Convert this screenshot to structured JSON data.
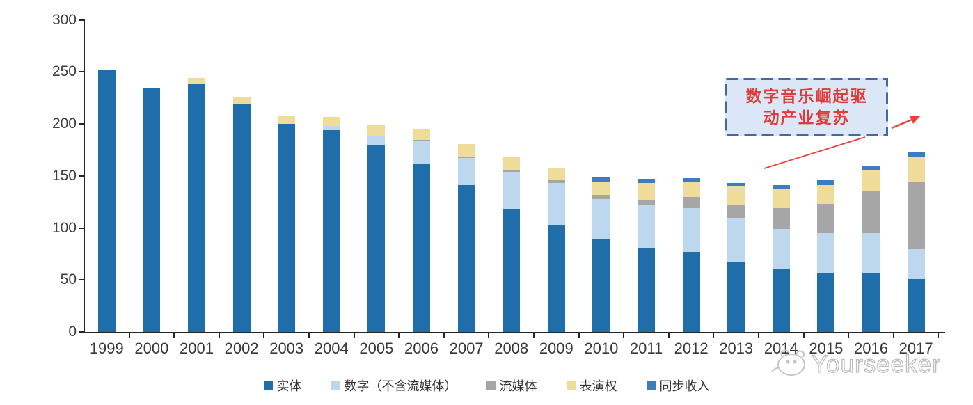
{
  "chart_data": {
    "type": "bar",
    "stacked": true,
    "title": "",
    "xlabel": "",
    "ylabel": "",
    "categories": [
      "1999",
      "2000",
      "2001",
      "2002",
      "2003",
      "2004",
      "2005",
      "2006",
      "2007",
      "2008",
      "2009",
      "2010",
      "2011",
      "2012",
      "2013",
      "2014",
      "2015",
      "2016",
      "2017"
    ],
    "series": [
      {
        "name": "实体",
        "color": "#1F6DA9",
        "values": [
          252,
          234,
          238,
          219,
          200,
          194,
          180,
          162,
          141,
          118,
          103,
          89,
          80,
          77,
          67,
          61,
          57,
          57,
          51
        ]
      },
      {
        "name": "数字（不含流媒体）",
        "color": "#BDD7EE",
        "values": [
          0,
          0,
          0,
          0,
          0,
          4,
          9,
          22,
          26,
          36,
          40,
          39,
          42,
          42,
          43,
          38,
          38,
          38,
          29
        ]
      },
      {
        "name": "流媒体",
        "color": "#A6A6A6",
        "values": [
          0,
          0,
          0,
          0,
          0,
          0,
          0,
          1,
          1,
          2,
          3,
          4,
          5,
          11,
          13,
          20,
          28,
          40,
          65
        ]
      },
      {
        "name": "表演权",
        "color": "#EFDC9B",
        "values": [
          0,
          0,
          6,
          7,
          8,
          9,
          11,
          10,
          13,
          13,
          12,
          13,
          16,
          14,
          18,
          18,
          18,
          20,
          24
        ]
      },
      {
        "name": "同步收入",
        "color": "#3E7CBE",
        "values": [
          0,
          0,
          0,
          0,
          0,
          0,
          0,
          0,
          0,
          0,
          0,
          4,
          4,
          4,
          3,
          4,
          5,
          5,
          4
        ]
      }
    ],
    "ylim": [
      0,
      300
    ],
    "yticks": [
      0,
      50,
      100,
      150,
      200,
      250,
      300
    ],
    "grid": false,
    "legend_position": "bottom"
  },
  "annotation": {
    "line1": "数字音乐崛起驱",
    "line2": "动产业复苏",
    "text_color": "#E03B3B",
    "box_fill": "#DBE7F6",
    "box_border": "#44699D",
    "arrow_color": "#E8413C"
  },
  "watermark": {
    "text": "Yourseeker"
  }
}
